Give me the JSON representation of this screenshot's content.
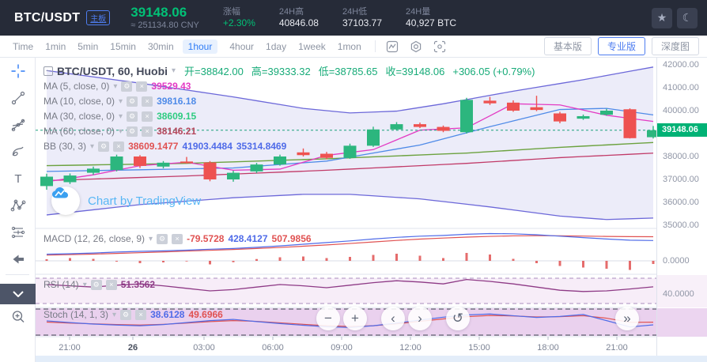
{
  "header": {
    "pair": "BTC/USDT",
    "board_badge": "主板",
    "price": "39148.06",
    "price_cny": "≈ 251134.80 CNY",
    "stats": [
      {
        "label": "涨幅",
        "value": "+2.30%",
        "up": true
      },
      {
        "label": "24H高",
        "value": "40846.08",
        "up": false
      },
      {
        "label": "24H低",
        "value": "37103.77",
        "up": false
      },
      {
        "label": "24H量",
        "value": "40,927 BTC",
        "up": false
      }
    ],
    "icon_buttons": [
      "favorite-star",
      "dark-mode-moon"
    ]
  },
  "toolbar": {
    "intervals": [
      "Time",
      "1min",
      "5min",
      "15min",
      "30min",
      "1hour",
      "4hour",
      "1day",
      "1week",
      "1mon"
    ],
    "active_interval": "1hour",
    "icon_buttons": [
      "indicator-chart",
      "settings-hexagon",
      "screenshot-frame"
    ],
    "view_buttons": [
      "基本版",
      "专业版",
      "深度图"
    ],
    "active_view": "专业版"
  },
  "sidebar": {
    "tools": [
      {
        "name": "crosshair",
        "active": true
      },
      {
        "name": "trend-line"
      },
      {
        "name": "gann-fan"
      },
      {
        "name": "brush"
      },
      {
        "name": "text"
      },
      {
        "name": "xabcd-pattern"
      },
      {
        "name": "forecast-tool"
      },
      {
        "name": "back-arrow"
      },
      {
        "name": "ruler",
        "divider_above": true
      },
      {
        "name": "zoom-in"
      }
    ]
  },
  "legend": {
    "title": "BTC/USDT, 60, Huobi",
    "open_label": "开",
    "open": "38842.00",
    "high_label": "高",
    "high": "39333.32",
    "low_label": "低",
    "low": "38785.65",
    "close_label": "收",
    "close": "39148.06",
    "change": "+306.05 (+0.79%)"
  },
  "indicator_rows": [
    {
      "label": "MA (5, close, 0)",
      "values": [
        {
          "text": "39529.43",
          "color": "#e33bc3"
        }
      ]
    },
    {
      "label": "MA (10, close, 0)",
      "values": [
        {
          "text": "39816.18",
          "color": "#4f8be8"
        }
      ]
    },
    {
      "label": "MA (30, close, 0)",
      "values": [
        {
          "text": "38609.15",
          "color": "#2ecc81"
        }
      ]
    },
    {
      "label": "MA (60, close, 0)",
      "values": [
        {
          "text": "38146.21",
          "color": "#b5485d"
        }
      ]
    },
    {
      "label": "BB (30, 3)",
      "values": [
        {
          "text": "38609.1477",
          "color": "#e05252"
        },
        {
          "text": "41903.4484",
          "color": "#4f6be8"
        },
        {
          "text": "35314.8469",
          "color": "#4f6be8"
        }
      ]
    }
  ],
  "macd_row": {
    "label": "MACD (12, 26, close, 9)",
    "values": [
      {
        "text": "-79.5728",
        "color": "#e05252"
      },
      {
        "text": "428.4127",
        "color": "#4f6be8"
      },
      {
        "text": "507.9856",
        "color": "#e05252"
      }
    ]
  },
  "rsi_row": {
    "label": "RSI (14)",
    "values": [
      {
        "text": "51.3562",
        "color": "#8e3a86"
      }
    ]
  },
  "stoch_row": {
    "label": "Stoch (14, 1, 3)",
    "values": [
      {
        "text": "38.6128",
        "color": "#4f6be8"
      },
      {
        "text": "49.6966",
        "color": "#e05252"
      }
    ]
  },
  "watermark": "Chart by TradingView",
  "nav_buttons": [
    "zoom-out",
    "zoom-in",
    "pan-left",
    "pan-right",
    "reset-chart",
    "go-to-realtime"
  ],
  "chart_data": {
    "type": "candlestick",
    "symbol": "BTC/USDT",
    "interval_minutes": 60,
    "exchange": "Huobi",
    "price_axis_ticks": [
      "42000.00",
      "41000.00",
      "40000.00",
      "38000.00",
      "37000.00",
      "36000.00",
      "35000.00"
    ],
    "price_badge": "39148.06",
    "current_price": 39148.06,
    "time_axis": [
      "21:00",
      "26",
      "03:00",
      "06:00",
      "09:00",
      "12:00",
      "15:00",
      "18:00",
      "21:00"
    ],
    "candles_ohlc": [
      [
        36710,
        37250,
        36550,
        37120
      ],
      [
        36880,
        37260,
        36800,
        37170
      ],
      [
        37290,
        37560,
        37200,
        37470
      ],
      [
        37410,
        38080,
        37350,
        38000
      ],
      [
        38000,
        38060,
        37500,
        37590
      ],
      [
        37560,
        37800,
        37480,
        37730
      ],
      [
        37780,
        37980,
        37690,
        37740
      ],
      [
        37740,
        37800,
        36920,
        37000
      ],
      [
        37000,
        37380,
        36900,
        37290
      ],
      [
        37350,
        37720,
        37280,
        37650
      ],
      [
        37650,
        38080,
        37600,
        38000
      ],
      [
        38180,
        38350,
        38000,
        38060
      ],
      [
        38120,
        38200,
        37880,
        37940
      ],
      [
        37940,
        38560,
        37900,
        38470
      ],
      [
        38470,
        39300,
        38420,
        39180
      ],
      [
        39180,
        39500,
        39130,
        39410
      ],
      [
        39410,
        39480,
        39240,
        39290
      ],
      [
        39290,
        39350,
        39060,
        39120
      ],
      [
        39060,
        40560,
        39000,
        40470
      ],
      [
        40435,
        40600,
        40250,
        40320
      ],
      [
        40350,
        40450,
        39950,
        40000
      ],
      [
        40150,
        40650,
        39980,
        40030
      ],
      [
        39880,
        39950,
        39450,
        39530
      ],
      [
        39650,
        39830,
        39600,
        39760
      ],
      [
        39820,
        40080,
        39780,
        40000
      ],
      [
        40060,
        40100,
        38786,
        38800
      ],
      [
        38842,
        39333,
        38786,
        39148
      ]
    ],
    "overlays": {
      "ma5": [
        [
          0,
          36900
        ],
        [
          2,
          37200
        ],
        [
          4,
          37600
        ],
        [
          6,
          37750
        ],
        [
          8,
          37400
        ],
        [
          10,
          37450
        ],
        [
          12,
          38050
        ],
        [
          14,
          38300
        ],
        [
          16,
          39150
        ],
        [
          18,
          39250
        ],
        [
          20,
          40300
        ],
        [
          22,
          40250
        ],
        [
          24,
          39800
        ],
        [
          26,
          39529
        ]
      ],
      "ma10": [
        [
          0,
          37350
        ],
        [
          4,
          37420
        ],
        [
          8,
          37500
        ],
        [
          12,
          37800
        ],
        [
          16,
          38500
        ],
        [
          19,
          39300
        ],
        [
          22,
          40050
        ],
        [
          24,
          40100
        ],
        [
          26,
          39816
        ]
      ],
      "ma30": [
        [
          0,
          37600
        ],
        [
          6,
          37700
        ],
        [
          12,
          37900
        ],
        [
          18,
          38150
        ],
        [
          22,
          38400
        ],
        [
          26,
          38609
        ]
      ],
      "ma60": [
        [
          0,
          36950
        ],
        [
          6,
          37150
        ],
        [
          12,
          37400
        ],
        [
          18,
          37700
        ],
        [
          22,
          37950
        ],
        [
          26,
          38146
        ]
      ],
      "bb_upper": [
        [
          0,
          41750
        ],
        [
          4,
          41200
        ],
        [
          8,
          40600
        ],
        [
          11,
          40100
        ],
        [
          13,
          39900
        ],
        [
          15,
          39980
        ],
        [
          17,
          40300
        ],
        [
          20,
          40850
        ],
        [
          23,
          41350
        ],
        [
          26,
          41903
        ]
      ],
      "bb_lower": [
        [
          0,
          35450
        ],
        [
          4,
          35900
        ],
        [
          8,
          36200
        ],
        [
          11,
          36350
        ],
        [
          13,
          36350
        ],
        [
          16,
          36150
        ],
        [
          19,
          35800
        ],
        [
          22,
          35400
        ],
        [
          24,
          35250
        ],
        [
          26,
          35315
        ]
      ]
    },
    "macd": {
      "axis_tick": "0.0000",
      "hist": [
        40,
        70,
        50,
        -20,
        -60,
        -40,
        -15,
        -90,
        -35,
        45,
        90,
        110,
        70,
        100,
        150,
        180,
        130,
        70,
        200,
        160,
        50,
        -60,
        -130,
        -170,
        -200,
        -230,
        -80
      ],
      "dif": [
        140,
        150,
        165,
        185,
        200,
        210,
        225,
        245,
        260,
        285,
        315,
        350,
        385,
        420,
        460,
        495,
        520,
        535,
        560,
        575,
        570,
        550,
        520,
        490,
        460,
        435,
        428
      ],
      "dea": [
        120,
        130,
        142,
        156,
        172,
        188,
        205,
        222,
        240,
        260,
        282,
        308,
        336,
        366,
        398,
        430,
        458,
        480,
        500,
        516,
        526,
        530,
        528,
        522,
        515,
        510,
        508
      ]
    },
    "rsi": {
      "axis_tick": "40.0000",
      "values": [
        55,
        53,
        51,
        54,
        56,
        53,
        49,
        45,
        47,
        51,
        55,
        53,
        50,
        54,
        58,
        61,
        59,
        56,
        63,
        60,
        56,
        51,
        46,
        44,
        45,
        48,
        51.4
      ]
    },
    "stoch": {
      "k": [
        55,
        48,
        42,
        38,
        35,
        40,
        48,
        56,
        61,
        52,
        44,
        37,
        31,
        28,
        35,
        46,
        58,
        70,
        79,
        83,
        76,
        69,
        73,
        81,
        56,
        30,
        38.6
      ],
      "d": [
        50,
        46,
        43,
        40,
        38,
        41,
        46,
        52,
        56,
        53,
        47,
        41,
        35,
        32,
        35,
        43,
        53,
        63,
        72,
        77,
        75,
        71,
        72,
        76,
        66,
        49,
        49.7
      ]
    }
  }
}
